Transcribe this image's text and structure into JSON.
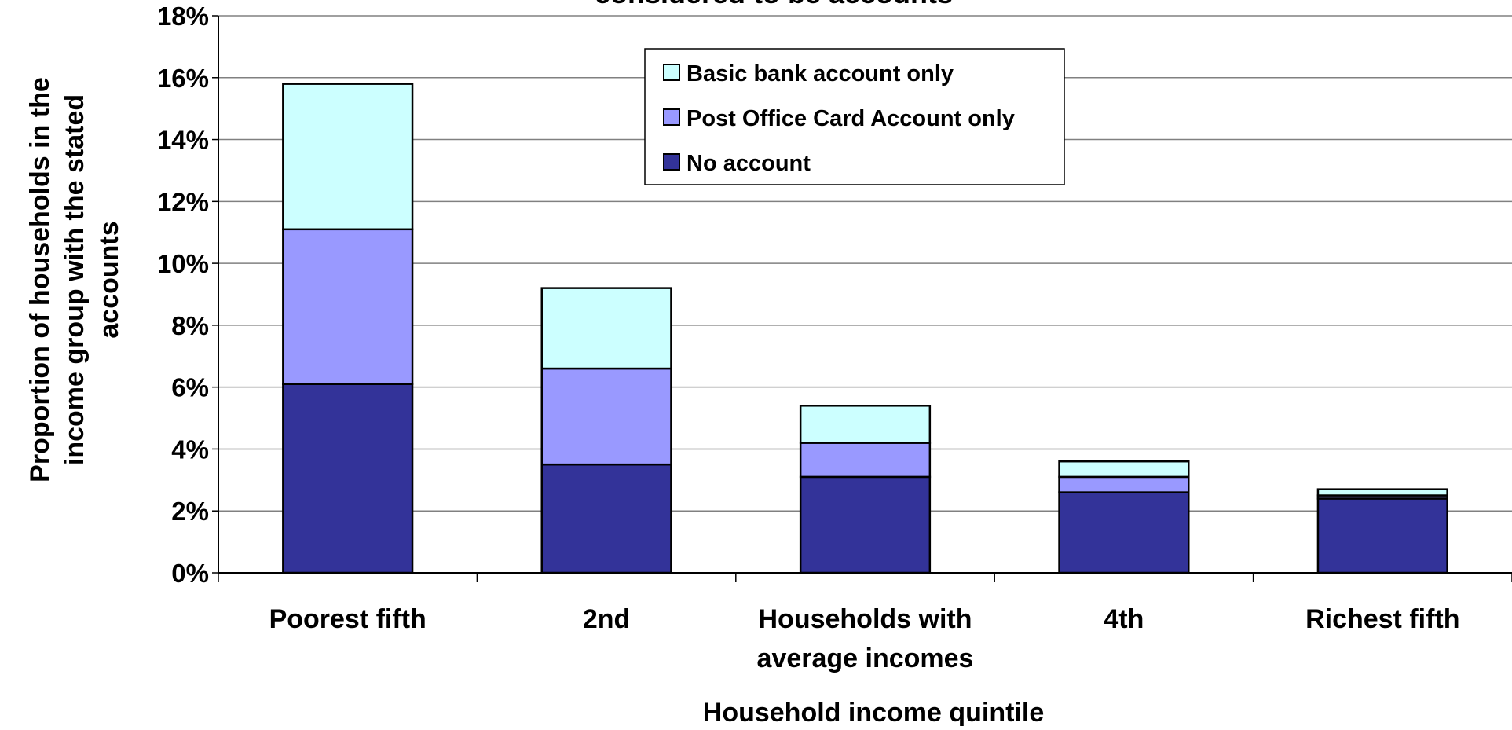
{
  "chart_data": {
    "type": "bar",
    "stacked": true,
    "title": "considered to be accounts",
    "xlabel": "Household income quintile",
    "ylabel_lines": [
      "Proportion of households in the",
      "income group with the stated",
      "accounts"
    ],
    "categories": [
      [
        "Poorest fifth"
      ],
      [
        "2nd"
      ],
      [
        "Households with",
        "average incomes"
      ],
      [
        "4th"
      ],
      [
        "Richest fifth"
      ]
    ],
    "yticks": [
      "0%",
      "2%",
      "4%",
      "6%",
      "8%",
      "10%",
      "12%",
      "14%",
      "16%",
      "18%"
    ],
    "ylim": [
      0,
      18
    ],
    "grid": true,
    "legend_position": "top-center",
    "series": [
      {
        "name": "No account",
        "values": [
          6.1,
          3.5,
          3.1,
          2.6,
          2.4
        ],
        "color": "#333399"
      },
      {
        "name": "Post Office Card Account only",
        "values": [
          5.0,
          3.1,
          1.1,
          0.5,
          0.1
        ],
        "color": "#9999FF"
      },
      {
        "name": "Basic bank account only",
        "values": [
          4.7,
          2.6,
          1.2,
          0.5,
          0.2
        ],
        "color": "#CCFFFF"
      }
    ],
    "legend_order": [
      2,
      1,
      0
    ]
  }
}
